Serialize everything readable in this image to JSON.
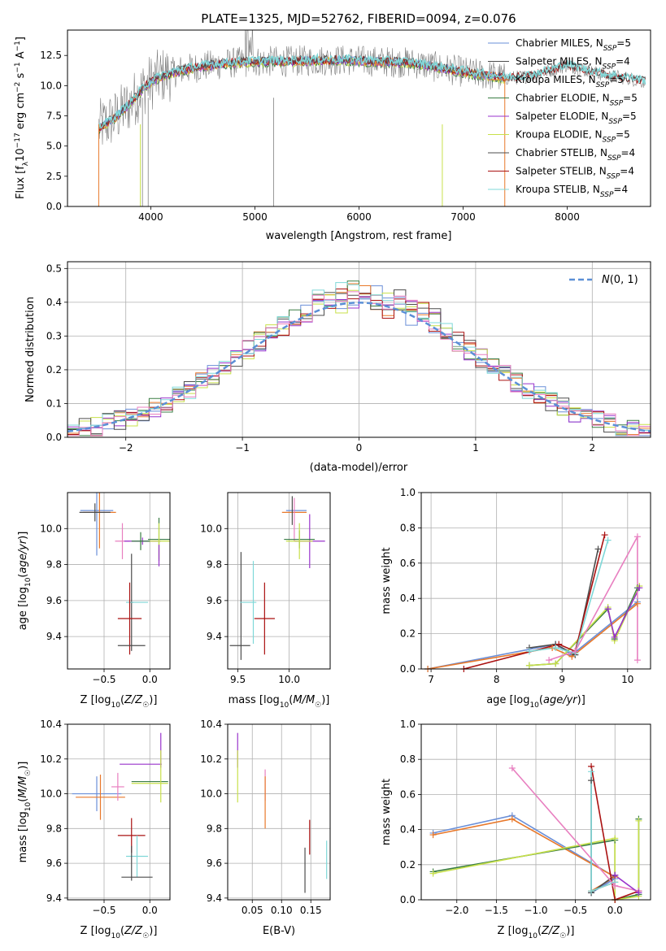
{
  "colors": {
    "blue": "#6a8fd8",
    "orange": "#e8782a",
    "green": "#3a7d44",
    "purple": "#9933cc",
    "yellow": "#c8e04a",
    "darkgray": "#4d4d4d",
    "red": "#aa1111",
    "cyan": "#7fd8d8",
    "pink": "#e87fc0",
    "normal": "#5b8fd6",
    "spectrum": "#808080"
  },
  "chart_data": [
    {
      "id": "spectrum",
      "type": "line",
      "title": "PLATE=1325, MJD=52762, FIBERID=0094, z=0.076",
      "xlabel": "wavelength [Angstrom, rest frame]",
      "ylabel": "Flux [f_λ10^-17 erg cm^-2 s^-1 A^-1]",
      "xlim": [
        3200,
        8800
      ],
      "ylim": [
        0,
        14.6
      ],
      "xticks": [
        4000,
        5000,
        6000,
        7000,
        8000
      ],
      "yticks": [
        0.0,
        2.5,
        5.0,
        7.5,
        10.0,
        12.5
      ],
      "legend": {
        "position": "top-right",
        "entries": [
          {
            "label": "Chabrier MILES, N",
            "sub": "SSP",
            "suffix": "=5",
            "color": "blue"
          },
          {
            "label": "Salpeter MILES, N",
            "sub": "SSP",
            "suffix": "=4",
            "color": "darkgray"
          },
          {
            "label": "Kroupa MILES, N",
            "sub": "SSP",
            "suffix": "=5",
            "color": "orange"
          },
          {
            "label": "Chabrier ELODIE, N",
            "sub": "SSP",
            "suffix": "=5",
            "color": "green"
          },
          {
            "label": "Salpeter ELODIE, N",
            "sub": "SSP",
            "suffix": "=5",
            "color": "purple"
          },
          {
            "label": "Kroupa ELODIE, N",
            "sub": "SSP",
            "suffix": "=5",
            "color": "yellow"
          },
          {
            "label": "Chabrier STELIB, N",
            "sub": "SSP",
            "suffix": "=4",
            "color": "darkgray"
          },
          {
            "label": "Salpeter STELIB, N",
            "sub": "SSP",
            "suffix": "=4",
            "color": "red"
          },
          {
            "label": "Kroupa STELIB, N",
            "sub": "SSP",
            "suffix": "=4",
            "color": "cyan"
          }
        ]
      },
      "model_envelope": [
        [
          3500,
          6.5
        ],
        [
          3650,
          7.3
        ],
        [
          3800,
          8.5
        ],
        [
          3950,
          10.0
        ],
        [
          4100,
          10.8
        ],
        [
          4300,
          11.3
        ],
        [
          4500,
          11.6
        ],
        [
          4800,
          11.9
        ],
        [
          5000,
          12.0
        ],
        [
          5300,
          12.0
        ],
        [
          5600,
          12.1
        ],
        [
          5900,
          12.1
        ],
        [
          6200,
          12.0
        ],
        [
          6500,
          11.9
        ],
        [
          6700,
          11.6
        ],
        [
          6900,
          11.3
        ],
        [
          7100,
          11.0
        ],
        [
          7300,
          10.8
        ],
        [
          7400,
          10.6
        ]
      ],
      "stelib_extension": [
        [
          7400,
          10.6
        ],
        [
          7550,
          10.7
        ],
        [
          7700,
          10.9
        ],
        [
          7850,
          11.3
        ],
        [
          8000,
          11.7
        ],
        [
          8200,
          11.2
        ],
        [
          8400,
          10.8
        ],
        [
          8600,
          10.6
        ],
        [
          8750,
          10.3
        ]
      ]
    },
    {
      "id": "residuals",
      "type": "histogram",
      "xlabel": "(data-model)/error",
      "ylabel": "Normed distribution",
      "xlim": [
        -2.5,
        2.5
      ],
      "ylim": [
        0,
        0.52
      ],
      "xticks": [
        -2,
        -1,
        0,
        1,
        2
      ],
      "yticks": [
        0.0,
        0.1,
        0.2,
        0.3,
        0.4,
        0.5
      ],
      "legend": {
        "position": "top-right",
        "entries": [
          {
            "label": "N(0, 1)",
            "color": "normal",
            "style": "dashed"
          }
        ]
      },
      "bin_width": 0.1,
      "bin_start": -2.5,
      "series_colors": [
        "blue",
        "orange",
        "green",
        "purple",
        "yellow",
        "darkgray",
        "red",
        "cyan",
        "pink"
      ]
    },
    {
      "id": "age-vs-Z",
      "type": "errorbar",
      "xlabel": "Z [log10(Z/Z☉)]",
      "ylabel": "age [log10(age/yr)]",
      "xlim": [
        -0.9,
        0.22
      ],
      "ylim": [
        9.22,
        10.2
      ],
      "xticks": [
        -0.5,
        0.0
      ],
      "yticks": [
        9.4,
        9.6,
        9.8,
        10.0
      ],
      "points": [
        {
          "x": -0.58,
          "y": 10.1,
          "xerr": 0.18,
          "yerr": 0.25,
          "color": "blue"
        },
        {
          "x": -0.55,
          "y": 10.09,
          "xerr": 0.18,
          "yerr": 0.2,
          "color": "orange"
        },
        {
          "x": -0.6,
          "y": 10.09,
          "xerr": 0.17,
          "yerr": 0.05,
          "color": "darkgray"
        },
        {
          "x": -0.3,
          "y": 9.93,
          "xerr": 0.08,
          "yerr": 0.1,
          "color": "pink"
        },
        {
          "x": -0.08,
          "y": 9.93,
          "xerr": 0.2,
          "yerr": 0.02,
          "color": "purple"
        },
        {
          "x": 0.1,
          "y": 9.94,
          "xerr": 0.12,
          "yerr": 0.12,
          "color": "green"
        },
        {
          "x": 0.1,
          "y": 9.93,
          "xerr": 0.12,
          "yerr": 0.1,
          "color": "yellow"
        },
        {
          "x": -0.1,
          "y": 9.93,
          "xerr": 0.1,
          "yerr": 0.05,
          "color": "green"
        },
        {
          "x": 0.1,
          "y": 9.85,
          "xerr": 0.0,
          "yerr": 0.06,
          "color": "purple"
        },
        {
          "x": -0.2,
          "y": 9.59,
          "xerr": 0.02,
          "yerr": 0.27,
          "color": "darkgray"
        },
        {
          "x": -0.14,
          "y": 9.59,
          "xerr": 0.12,
          "yerr": 0.0,
          "color": "cyan"
        },
        {
          "x": -0.22,
          "y": 9.5,
          "xerr": 0.13,
          "yerr": 0.2,
          "color": "red"
        },
        {
          "x": -0.2,
          "y": 9.35,
          "xerr": 0.15,
          "yerr": 0.0,
          "color": "darkgray"
        }
      ]
    },
    {
      "id": "age-vs-mass",
      "type": "errorbar",
      "xlabel": "mass [log10(M/M☉)]",
      "ylabel": "",
      "xlim": [
        9.4,
        10.4
      ],
      "ylim": [
        9.22,
        10.2
      ],
      "xticks": [
        9.5,
        10.0
      ],
      "yticks": [
        9.4,
        9.6,
        9.8,
        10.0
      ],
      "points": [
        {
          "x": 10.07,
          "y": 10.1,
          "xerr": 0.1,
          "yerr": 0.0,
          "color": "blue"
        },
        {
          "x": 10.05,
          "y": 10.09,
          "xerr": 0.12,
          "yerr": 0.0,
          "color": "orange"
        },
        {
          "x": 10.03,
          "y": 10.1,
          "xerr": 0.0,
          "yerr": 0.08,
          "color": "darkgray"
        },
        {
          "x": 10.05,
          "y": 10.05,
          "xerr": 0.0,
          "yerr": 0.12,
          "color": "pink"
        },
        {
          "x": 10.2,
          "y": 9.93,
          "xerr": 0.15,
          "yerr": 0.15,
          "color": "purple"
        },
        {
          "x": 10.1,
          "y": 9.94,
          "xerr": 0.15,
          "yerr": 0.05,
          "color": "green"
        },
        {
          "x": 10.1,
          "y": 9.93,
          "xerr": 0.13,
          "yerr": 0.1,
          "color": "yellow"
        },
        {
          "x": 9.53,
          "y": 9.57,
          "xerr": 0.0,
          "yerr": 0.3,
          "color": "darkgray"
        },
        {
          "x": 9.6,
          "y": 9.59,
          "xerr": 0.08,
          "yerr": 0.0,
          "color": "cyan"
        },
        {
          "x": 9.65,
          "y": 9.59,
          "xerr": 0.0,
          "yerr": 0.23,
          "color": "cyan"
        },
        {
          "x": 9.76,
          "y": 9.5,
          "xerr": 0.1,
          "yerr": 0.2,
          "color": "red"
        },
        {
          "x": 9.52,
          "y": 9.35,
          "xerr": 0.1,
          "yerr": 0.0,
          "color": "darkgray"
        }
      ]
    },
    {
      "id": "weight-vs-age",
      "type": "line",
      "xlabel": "age [log10(age/yr)]",
      "ylabel": "mass weight",
      "xlim": [
        6.85,
        10.35
      ],
      "ylim": [
        0,
        1.0
      ],
      "xticks": [
        7,
        8,
        9,
        10
      ],
      "yticks": [
        0.0,
        0.2,
        0.4,
        0.6,
        0.8,
        1.0
      ],
      "series": [
        {
          "color": "blue",
          "x": [
            6.95,
            8.9,
            9.15,
            10.15
          ],
          "y": [
            0.0,
            0.14,
            0.08,
            0.38
          ]
        },
        {
          "color": "orange",
          "x": [
            6.95,
            8.85,
            9.15,
            10.15
          ],
          "y": [
            0.0,
            0.12,
            0.07,
            0.37
          ]
        },
        {
          "color": "green",
          "x": [
            8.5,
            8.9,
            9.7,
            9.8,
            10.15
          ],
          "y": [
            0.02,
            0.03,
            0.34,
            0.17,
            0.46
          ]
        },
        {
          "color": "yellow",
          "x": [
            8.5,
            8.9,
            9.7,
            9.8,
            10.18
          ],
          "y": [
            0.02,
            0.03,
            0.35,
            0.16,
            0.47
          ]
        },
        {
          "color": "purple",
          "x": [
            9.7,
            9.8,
            10.18
          ],
          "y": [
            0.34,
            0.18,
            0.46
          ]
        },
        {
          "color": "darkgray",
          "x": [
            8.5,
            8.9,
            9.2,
            9.55
          ],
          "y": [
            0.12,
            0.14,
            0.08,
            0.68
          ]
        },
        {
          "color": "red",
          "x": [
            7.5,
            8.95,
            9.2,
            9.65
          ],
          "y": [
            0.0,
            0.14,
            0.1,
            0.76
          ]
        },
        {
          "color": "cyan",
          "x": [
            8.5,
            8.9,
            9.2,
            9.7
          ],
          "y": [
            0.1,
            0.12,
            0.09,
            0.73
          ]
        },
        {
          "color": "pink",
          "x": [
            8.8,
            9.2,
            10.15,
            10.15
          ],
          "y": [
            0.05,
            0.1,
            0.75,
            0.05
          ]
        }
      ]
    },
    {
      "id": "mass-vs-Z",
      "type": "errorbar",
      "xlabel": "Z [log10(Z/Z☉)]",
      "ylabel": "mass [log10(M/M☉)]",
      "xlim": [
        -0.9,
        0.22
      ],
      "ylim": [
        9.39,
        10.4
      ],
      "xticks": [
        -0.5,
        0.0
      ],
      "yticks": [
        9.4,
        9.6,
        9.8,
        10.0,
        10.2,
        10.4
      ],
      "points": [
        {
          "x": -0.58,
          "y": 10.0,
          "xerr": 0.27,
          "yerr": 0.1,
          "color": "blue"
        },
        {
          "x": -0.54,
          "y": 9.98,
          "xerr": 0.27,
          "yerr": 0.13,
          "color": "orange"
        },
        {
          "x": -0.35,
          "y": 10.04,
          "xerr": 0.07,
          "yerr": 0.08,
          "color": "pink"
        },
        {
          "x": -0.1,
          "y": 10.17,
          "xerr": 0.23,
          "yerr": 0.0,
          "color": "purple"
        },
        {
          "x": 0.12,
          "y": 10.25,
          "xerr": 0.0,
          "yerr": 0.1,
          "color": "purple"
        },
        {
          "x": 0.0,
          "y": 10.07,
          "xerr": 0.2,
          "yerr": 0.0,
          "color": "green"
        },
        {
          "x": 0.0,
          "y": 10.06,
          "xerr": 0.2,
          "yerr": 0.0,
          "color": "yellow"
        },
        {
          "x": 0.12,
          "y": 10.1,
          "xerr": 0.0,
          "yerr": 0.15,
          "color": "yellow"
        },
        {
          "x": -0.2,
          "y": 9.76,
          "xerr": 0.15,
          "yerr": 0.1,
          "color": "red"
        },
        {
          "x": -0.14,
          "y": 9.64,
          "xerr": 0.12,
          "yerr": 0.12,
          "color": "cyan"
        },
        {
          "x": -0.2,
          "y": 9.6,
          "xerr": 0.0,
          "yerr": 0.1,
          "color": "darkgray"
        },
        {
          "x": -0.14,
          "y": 9.52,
          "xerr": 0.17,
          "yerr": 0.0,
          "color": "darkgray"
        }
      ]
    },
    {
      "id": "mass-vs-EBV",
      "type": "errorbar",
      "xlabel": "E(B-V)",
      "ylabel": "",
      "xlim": [
        0.008,
        0.183
      ],
      "ylim": [
        9.39,
        10.4
      ],
      "xticks": [
        0.05,
        0.1,
        0.15
      ],
      "yticks": [
        9.4,
        9.6,
        9.8,
        10.0,
        10.2,
        10.4
      ],
      "points": [
        {
          "x": 0.025,
          "y": 10.25,
          "xerr": 0.0,
          "yerr": 0.1,
          "color": "purple"
        },
        {
          "x": 0.025,
          "y": 10.1,
          "xerr": 0.0,
          "yerr": 0.15,
          "color": "yellow"
        },
        {
          "x": 0.072,
          "y": 10.05,
          "xerr": 0.0,
          "yerr": 0.09,
          "color": "pink"
        },
        {
          "x": 0.072,
          "y": 9.95,
          "xerr": 0.0,
          "yerr": 0.15,
          "color": "orange"
        },
        {
          "x": 0.14,
          "y": 9.56,
          "xerr": 0.0,
          "yerr": 0.13,
          "color": "darkgray"
        },
        {
          "x": 0.148,
          "y": 9.75,
          "xerr": 0.0,
          "yerr": 0.1,
          "color": "red"
        },
        {
          "x": 0.177,
          "y": 9.62,
          "xerr": 0.0,
          "yerr": 0.11,
          "color": "cyan"
        }
      ]
    },
    {
      "id": "weight-vs-Z",
      "type": "line",
      "xlabel": "Z [log10(Z/Z☉)]",
      "ylabel": "mass weight",
      "xlim": [
        -2.45,
        0.45
      ],
      "ylim": [
        0,
        1.0
      ],
      "xticks": [
        -2.0,
        -1.5,
        -1.0,
        -0.5,
        0.0
      ],
      "yticks": [
        0.0,
        0.2,
        0.4,
        0.6,
        0.8,
        1.0
      ],
      "series": [
        {
          "color": "blue",
          "x": [
            -2.3,
            -1.3,
            0.0,
            -0.3,
            0.0
          ],
          "y": [
            0.38,
            0.48,
            0.13,
            0.04,
            0.12
          ]
        },
        {
          "color": "orange",
          "x": [
            -2.3,
            -1.3,
            0.0,
            -0.3,
            0.0
          ],
          "y": [
            0.37,
            0.46,
            0.13,
            0.05,
            0.1
          ]
        },
        {
          "color": "green",
          "x": [
            -2.3,
            0.0,
            0.0,
            0.3,
            0.3
          ],
          "y": [
            0.16,
            0.34,
            0.0,
            0.03,
            0.46
          ]
        },
        {
          "color": "yellow",
          "x": [
            -2.3,
            0.0,
            0.0,
            0.3,
            0.3
          ],
          "y": [
            0.15,
            0.35,
            0.0,
            0.02,
            0.45
          ]
        },
        {
          "color": "darkgray",
          "x": [
            -0.3,
            -0.3,
            0.0
          ],
          "y": [
            0.68,
            0.04,
            0.14
          ]
        },
        {
          "color": "red",
          "x": [
            -0.3,
            0.0,
            0.3
          ],
          "y": [
            0.76,
            0.0,
            0.05
          ]
        },
        {
          "color": "cyan",
          "x": [
            -0.3,
            -0.3,
            0.0
          ],
          "y": [
            0.73,
            0.05,
            0.1
          ]
        },
        {
          "color": "pink",
          "x": [
            -1.3,
            0.0,
            0.3
          ],
          "y": [
            0.75,
            0.08,
            0.05
          ]
        },
        {
          "color": "purple",
          "x": [
            0.0,
            0.3
          ],
          "y": [
            0.14,
            0.04
          ]
        }
      ]
    }
  ]
}
